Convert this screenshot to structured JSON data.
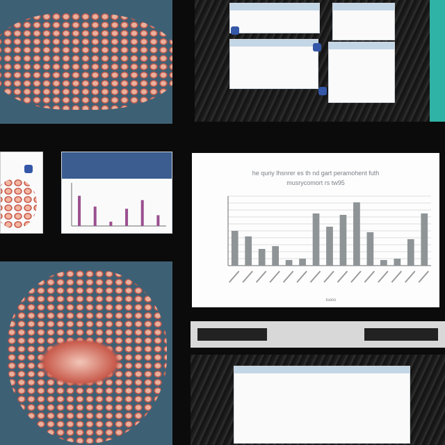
{
  "colors": {
    "background": "#0b0b0b",
    "tissue_bg": "#3e6074",
    "tissue_cells": "#d86e5e",
    "bar": "#8f9497",
    "accent_teal": "#2fb3a6",
    "blue_marker": "#3457a8"
  },
  "main_chart": {
    "title_line1": "he quriy lhsnrer es th nd gart peramohent futh",
    "title_line2": "musrycomort rs tw95",
    "xlabel": "tuoos"
  },
  "chart_data": {
    "type": "bar",
    "values": [
      50,
      42,
      24,
      28,
      8,
      10,
      75,
      56,
      73,
      91,
      48,
      8,
      10,
      38,
      75
    ],
    "ylim": [
      0,
      100
    ],
    "grid": true
  },
  "small_chart": {
    "type": "bar",
    "values": [
      70,
      45,
      10,
      40,
      60,
      25
    ]
  }
}
